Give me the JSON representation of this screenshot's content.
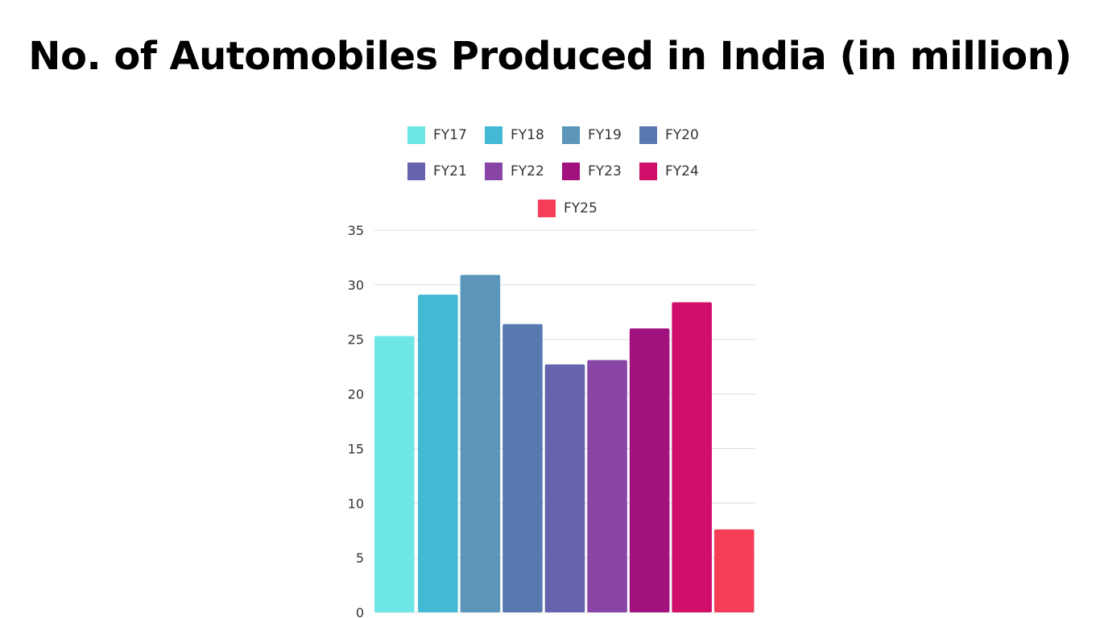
{
  "title": "No. of Automobiles Produced in India (in million)",
  "chart_data": {
    "type": "bar",
    "title": "No. of Automobiles Produced in India (in million)",
    "xlabel": "",
    "ylabel": "",
    "ylim": [
      0,
      35
    ],
    "yticks": [
      0,
      5,
      10,
      15,
      20,
      25,
      30,
      35
    ],
    "grid": true,
    "legend_position": "top",
    "series": [
      {
        "name": "FY17",
        "value": 25.3,
        "color": "#6ee6e8"
      },
      {
        "name": "FY18",
        "value": 29.1,
        "color": "#44b9d6"
      },
      {
        "name": "FY19",
        "value": 30.9,
        "color": "#5b96ba"
      },
      {
        "name": "FY20",
        "value": 26.4,
        "color": "#5878b0"
      },
      {
        "name": "FY21",
        "value": 22.7,
        "color": "#6662ae"
      },
      {
        "name": "FY22",
        "value": 23.1,
        "color": "#8845a6"
      },
      {
        "name": "FY23",
        "value": 26.0,
        "color": "#a1127f"
      },
      {
        "name": "FY24",
        "value": 28.4,
        "color": "#d10f6a"
      },
      {
        "name": "FY25",
        "value": 7.6,
        "color": "#f53d57"
      }
    ]
  }
}
